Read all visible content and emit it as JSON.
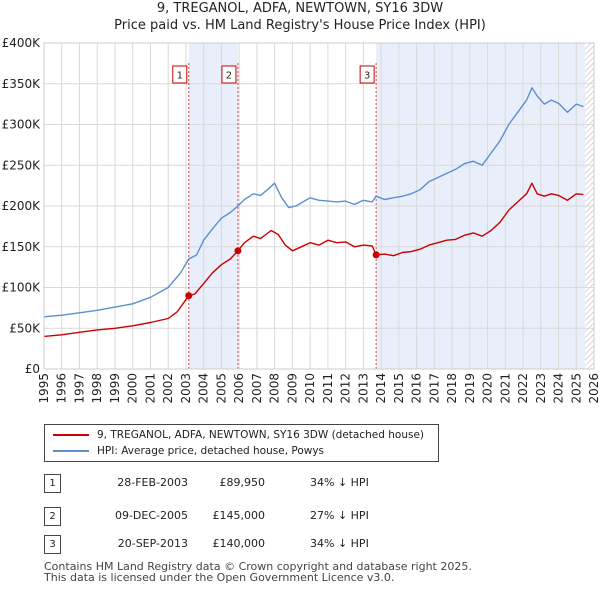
{
  "header": {
    "title": "9, TREGANOL, ADFA, NEWTOWN, SY16 3DW",
    "subtitle": "Price paid vs. HM Land Registry's House Price Index (HPI)"
  },
  "chart_data": {
    "type": "line",
    "title": "9, TREGANOL, ADFA, NEWTOWN, SY16 3DW",
    "subtitle": "Price paid vs. HM Land Registry's House Price Index (HPI)",
    "xlim": [
      1995,
      2026
    ],
    "ylim": [
      0,
      400000
    ],
    "x_ticks": [
      1995,
      1996,
      1997,
      1998,
      1999,
      2000,
      2001,
      2002,
      2003,
      2004,
      2005,
      2006,
      2007,
      2008,
      2009,
      2010,
      2011,
      2012,
      2013,
      2014,
      2015,
      2016,
      2017,
      2018,
      2019,
      2020,
      2021,
      2022,
      2023,
      2024,
      2025,
      2026
    ],
    "y_ticks": [
      {
        "value": 0,
        "label": "£0"
      },
      {
        "value": 50000,
        "label": "£50K"
      },
      {
        "value": 100000,
        "label": "£100K"
      },
      {
        "value": 150000,
        "label": "£150K"
      },
      {
        "value": 200000,
        "label": "£200K"
      },
      {
        "value": 250000,
        "label": "£250K"
      },
      {
        "value": 300000,
        "label": "£300K"
      },
      {
        "value": 350000,
        "label": "£350K"
      },
      {
        "value": 400000,
        "label": "£400K"
      }
    ],
    "grid": true,
    "series": [
      {
        "name": "9, TREGANOL, ADFA, NEWTOWN, SY16 3DW (detached house)",
        "color": "#cc0000",
        "points": [
          [
            1995.0,
            40000
          ],
          [
            1996.0,
            42000
          ],
          [
            1997.0,
            45000
          ],
          [
            1998.0,
            48000
          ],
          [
            1999.0,
            50000
          ],
          [
            2000.0,
            53000
          ],
          [
            2001.0,
            57000
          ],
          [
            2002.0,
            62000
          ],
          [
            2002.5,
            70000
          ],
          [
            2003.16,
            89950
          ],
          [
            2003.5,
            92000
          ],
          [
            2004.0,
            105000
          ],
          [
            2004.5,
            118000
          ],
          [
            2005.0,
            128000
          ],
          [
            2005.5,
            135000
          ],
          [
            2005.93,
            145000
          ],
          [
            2006.3,
            155000
          ],
          [
            2006.8,
            163000
          ],
          [
            2007.2,
            160000
          ],
          [
            2007.5,
            165000
          ],
          [
            2007.8,
            170000
          ],
          [
            2008.2,
            165000
          ],
          [
            2008.6,
            152000
          ],
          [
            2009.0,
            145000
          ],
          [
            2009.5,
            150000
          ],
          [
            2010.0,
            155000
          ],
          [
            2010.5,
            152000
          ],
          [
            2011.0,
            158000
          ],
          [
            2011.5,
            155000
          ],
          [
            2012.0,
            156000
          ],
          [
            2012.5,
            150000
          ],
          [
            2013.0,
            152000
          ],
          [
            2013.5,
            151000
          ],
          [
            2013.72,
            140000
          ],
          [
            2014.2,
            141000
          ],
          [
            2014.7,
            139000
          ],
          [
            2015.2,
            143000
          ],
          [
            2015.7,
            144000
          ],
          [
            2016.2,
            147000
          ],
          [
            2016.7,
            152000
          ],
          [
            2017.2,
            155000
          ],
          [
            2017.7,
            158000
          ],
          [
            2018.2,
            159000
          ],
          [
            2018.7,
            164000
          ],
          [
            2019.2,
            167000
          ],
          [
            2019.7,
            163000
          ],
          [
            2020.2,
            170000
          ],
          [
            2020.7,
            180000
          ],
          [
            2021.2,
            195000
          ],
          [
            2021.7,
            205000
          ],
          [
            2022.2,
            215000
          ],
          [
            2022.5,
            228000
          ],
          [
            2022.8,
            215000
          ],
          [
            2023.2,
            212000
          ],
          [
            2023.6,
            215000
          ],
          [
            2024.0,
            213000
          ],
          [
            2024.5,
            207000
          ],
          [
            2025.0,
            215000
          ],
          [
            2025.4,
            214000
          ]
        ]
      },
      {
        "name": "HPI: Average price, detached house, Powys",
        "color": "#5b8fd0",
        "points": [
          [
            1995.0,
            64000
          ],
          [
            1996.0,
            66000
          ],
          [
            1997.0,
            69000
          ],
          [
            1998.0,
            72000
          ],
          [
            1999.0,
            76000
          ],
          [
            2000.0,
            80000
          ],
          [
            2001.0,
            88000
          ],
          [
            2002.0,
            100000
          ],
          [
            2002.7,
            118000
          ],
          [
            2003.16,
            135000
          ],
          [
            2003.6,
            140000
          ],
          [
            2004.0,
            158000
          ],
          [
            2004.5,
            172000
          ],
          [
            2005.0,
            185000
          ],
          [
            2005.5,
            192000
          ],
          [
            2005.93,
            200000
          ],
          [
            2006.3,
            208000
          ],
          [
            2006.8,
            215000
          ],
          [
            2007.2,
            213000
          ],
          [
            2007.6,
            220000
          ],
          [
            2008.0,
            228000
          ],
          [
            2008.4,
            210000
          ],
          [
            2008.8,
            198000
          ],
          [
            2009.2,
            200000
          ],
          [
            2009.6,
            205000
          ],
          [
            2010.0,
            210000
          ],
          [
            2010.5,
            207000
          ],
          [
            2011.0,
            206000
          ],
          [
            2011.5,
            205000
          ],
          [
            2012.0,
            206000
          ],
          [
            2012.5,
            202000
          ],
          [
            2013.0,
            207000
          ],
          [
            2013.5,
            205000
          ],
          [
            2013.72,
            212000
          ],
          [
            2014.2,
            208000
          ],
          [
            2014.7,
            210000
          ],
          [
            2015.2,
            212000
          ],
          [
            2015.7,
            215000
          ],
          [
            2016.2,
            220000
          ],
          [
            2016.7,
            230000
          ],
          [
            2017.2,
            235000
          ],
          [
            2017.7,
            240000
          ],
          [
            2018.2,
            245000
          ],
          [
            2018.7,
            252000
          ],
          [
            2019.2,
            255000
          ],
          [
            2019.7,
            250000
          ],
          [
            2020.2,
            265000
          ],
          [
            2020.7,
            280000
          ],
          [
            2021.2,
            300000
          ],
          [
            2021.7,
            315000
          ],
          [
            2022.2,
            330000
          ],
          [
            2022.5,
            345000
          ],
          [
            2022.8,
            335000
          ],
          [
            2023.2,
            325000
          ],
          [
            2023.6,
            330000
          ],
          [
            2024.0,
            326000
          ],
          [
            2024.5,
            315000
          ],
          [
            2025.0,
            325000
          ],
          [
            2025.4,
            322000
          ]
        ]
      }
    ],
    "transactions": [
      {
        "marker": "1",
        "x": 2003.16,
        "y": 89950
      },
      {
        "marker": "2",
        "x": 2005.93,
        "y": 145000
      },
      {
        "marker": "3",
        "x": 2013.72,
        "y": 140000
      }
    ],
    "shaded_ranges": [
      [
        2003.16,
        2005.93
      ],
      [
        2013.72,
        2025.5
      ]
    ],
    "hatch_from": 2025.5
  },
  "legend": {
    "items": [
      {
        "label": "9, TREGANOL, ADFA, NEWTOWN, SY16 3DW (detached house)",
        "color": "#cc0000"
      },
      {
        "label": "HPI: Average price, detached house, Powys",
        "color": "#5b8fd0"
      }
    ]
  },
  "transactions": [
    {
      "marker": "1",
      "date": "28-FEB-2003",
      "price": "£89,950",
      "hpi": "34% ↓ HPI"
    },
    {
      "marker": "2",
      "date": "09-DEC-2005",
      "price": "£145,000",
      "hpi": "27% ↓ HPI"
    },
    {
      "marker": "3",
      "date": "20-SEP-2013",
      "price": "£140,000",
      "hpi": "34% ↓ HPI"
    }
  ],
  "footer": {
    "line1": "Contains HM Land Registry data © Crown copyright and database right 2025.",
    "line2": "This data is licensed under the Open Government Licence v3.0."
  }
}
